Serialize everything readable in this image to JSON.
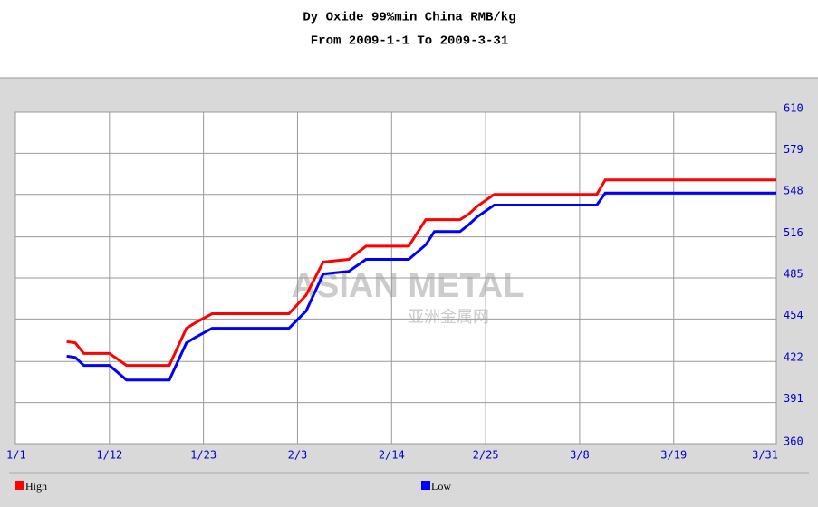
{
  "chart_data": {
    "type": "line",
    "title": "Dy Oxide  99%min China  RMB/kg",
    "subtitle": "From 2009-1-1 To 2009-3-31",
    "watermark": "ASIAN METAL",
    "watermark_sub": "亚洲金属网",
    "x": [
      "1/7",
      "1/8",
      "1/9",
      "1/12",
      "1/14",
      "1/19",
      "1/21",
      "1/22",
      "1/24",
      "2/2",
      "2/4",
      "2/6",
      "2/9",
      "2/11",
      "2/16",
      "2/18",
      "2/19",
      "2/22",
      "2/23",
      "2/24",
      "2/26",
      "3/10",
      "3/11",
      "3/31"
    ],
    "series": [
      {
        "name": "High",
        "color": "#ff0000",
        "values": [
          437,
          436,
          428,
          428,
          419,
          419,
          447,
          451,
          458,
          458,
          472,
          497,
          499,
          509,
          509,
          529,
          529,
          529,
          533,
          539,
          548,
          548,
          559,
          559
        ]
      },
      {
        "name": "Low",
        "color": "#0000ff",
        "values": [
          426,
          425,
          419,
          419,
          408,
          408,
          436,
          440,
          447,
          447,
          460,
          488,
          490,
          499,
          499,
          510,
          520,
          520,
          525,
          531,
          540,
          540,
          549,
          549
        ]
      }
    ],
    "xlim": [
      "1/1",
      "3/31"
    ],
    "xticks": [
      "1/1",
      "1/12",
      "1/23",
      "2/3",
      "2/14",
      "2/25",
      "3/8",
      "3/19",
      "3/31"
    ],
    "ylim": [
      360,
      610
    ],
    "yticks": [
      360,
      391,
      422,
      454,
      485,
      516,
      548,
      579,
      610
    ],
    "grid": true
  }
}
